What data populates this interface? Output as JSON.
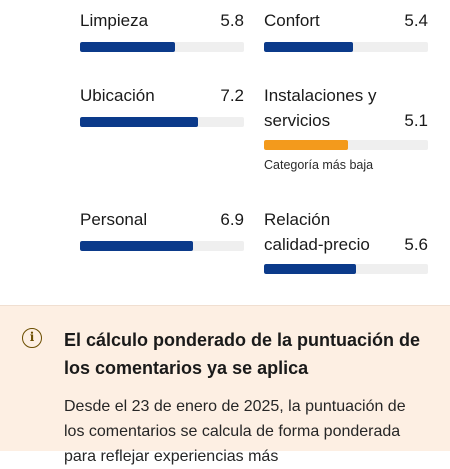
{
  "scores": [
    {
      "name": "Limpieza",
      "value": "5.8",
      "fill": 0.58,
      "lowest": false
    },
    {
      "name": "Confort",
      "value": "5.4",
      "fill": 0.54,
      "lowest": false
    },
    {
      "name": "Ubicación",
      "value": "7.2",
      "fill": 0.72,
      "lowest": false
    },
    {
      "name": "Instalaciones y servicios",
      "value": "5.1",
      "fill": 0.51,
      "lowest": true
    },
    {
      "name": "Personal",
      "value": "6.9",
      "fill": 0.69,
      "lowest": false
    },
    {
      "name": "Relación calidad-precio",
      "value": "5.6",
      "fill": 0.56,
      "lowest": false
    }
  ],
  "lowest_label": "Categoría más baja",
  "colors": {
    "bar_fill": "#0b3a8a",
    "bar_lowest": "#f39a1c",
    "bar_track": "#efefef",
    "notice_bg": "#fdefe3"
  },
  "notice": {
    "icon": "info-icon",
    "title": "El cálculo ponderado de la puntuación de los comentarios ya se aplica",
    "body": "Desde el 23 de enero de 2025, la puntuación de los comentarios se calcula de forma ponderada para reflejar experiencias más"
  }
}
